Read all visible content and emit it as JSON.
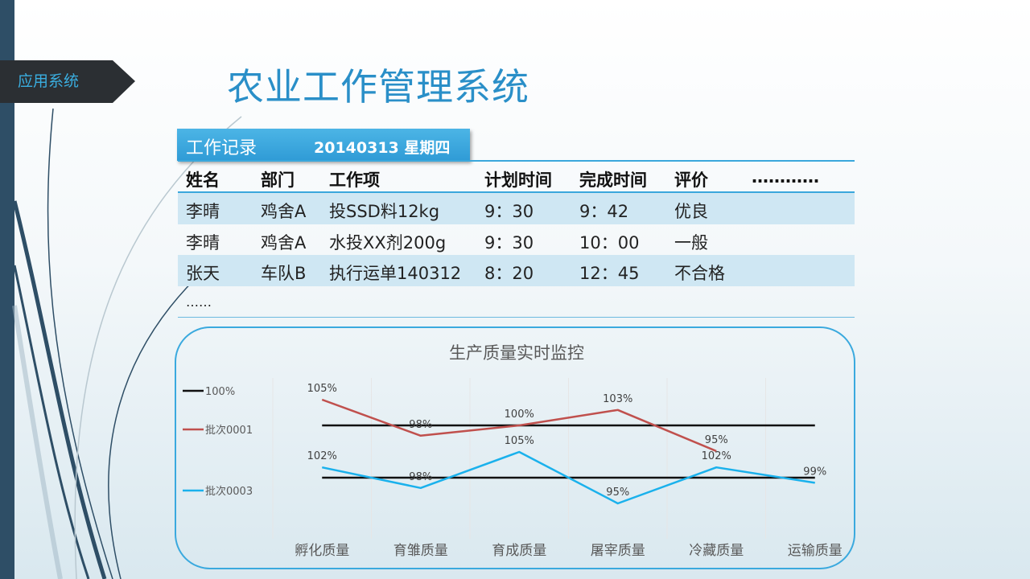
{
  "section_tag": "应用系统",
  "page_title": "农业工作管理系统",
  "record_header": {
    "label": "工作记录",
    "date": "20140313 星期四"
  },
  "table": {
    "headers": [
      "姓名",
      "部门",
      "工作项",
      "计划时间",
      "完成时间",
      "评价",
      "…………"
    ],
    "rows": [
      [
        "李晴",
        "鸡舍A",
        "投SSD料12kg",
        "9：30",
        "9：42",
        "优良"
      ],
      [
        "李晴",
        "鸡舍A",
        "水投XX剂200g",
        "9：30",
        "10：00",
        "一般"
      ],
      [
        "张天",
        "车队B",
        "执行运单140312",
        "8：20",
        "12：45",
        "不合格"
      ]
    ],
    "ellipsis": "……"
  },
  "chart_data": {
    "type": "line",
    "title": "生产质量实时监控",
    "categories": [
      "孵化质量",
      "育雏质量",
      "育成质量",
      "屠宰质量",
      "冷藏质量",
      "运输质量"
    ],
    "series": [
      {
        "name": "100%",
        "color": "#111111",
        "group": "upper",
        "values": [
          100,
          100,
          100,
          100,
          100,
          100
        ],
        "labels": []
      },
      {
        "name": "批次0001",
        "color": "#c0504d",
        "group": "upper",
        "values": [
          105,
          98,
          100,
          103,
          95,
          null
        ],
        "labels": [
          "105%",
          "98%",
          "100%",
          "103%",
          "95%",
          ""
        ]
      },
      {
        "name": "100%",
        "color": "#111111",
        "group": "lower",
        "values": [
          100,
          100,
          100,
          100,
          100,
          100
        ],
        "labels": [],
        "legend": false
      },
      {
        "name": "批次0003",
        "color": "#1ab1ec",
        "group": "lower",
        "values": [
          102,
          98,
          105,
          95,
          102,
          99
        ],
        "labels": [
          "102%",
          "98%",
          "105%",
          "95%",
          "102%",
          "99%"
        ]
      }
    ],
    "legend": [
      "100%",
      "批次0001",
      "批次0003"
    ],
    "grid": true
  }
}
